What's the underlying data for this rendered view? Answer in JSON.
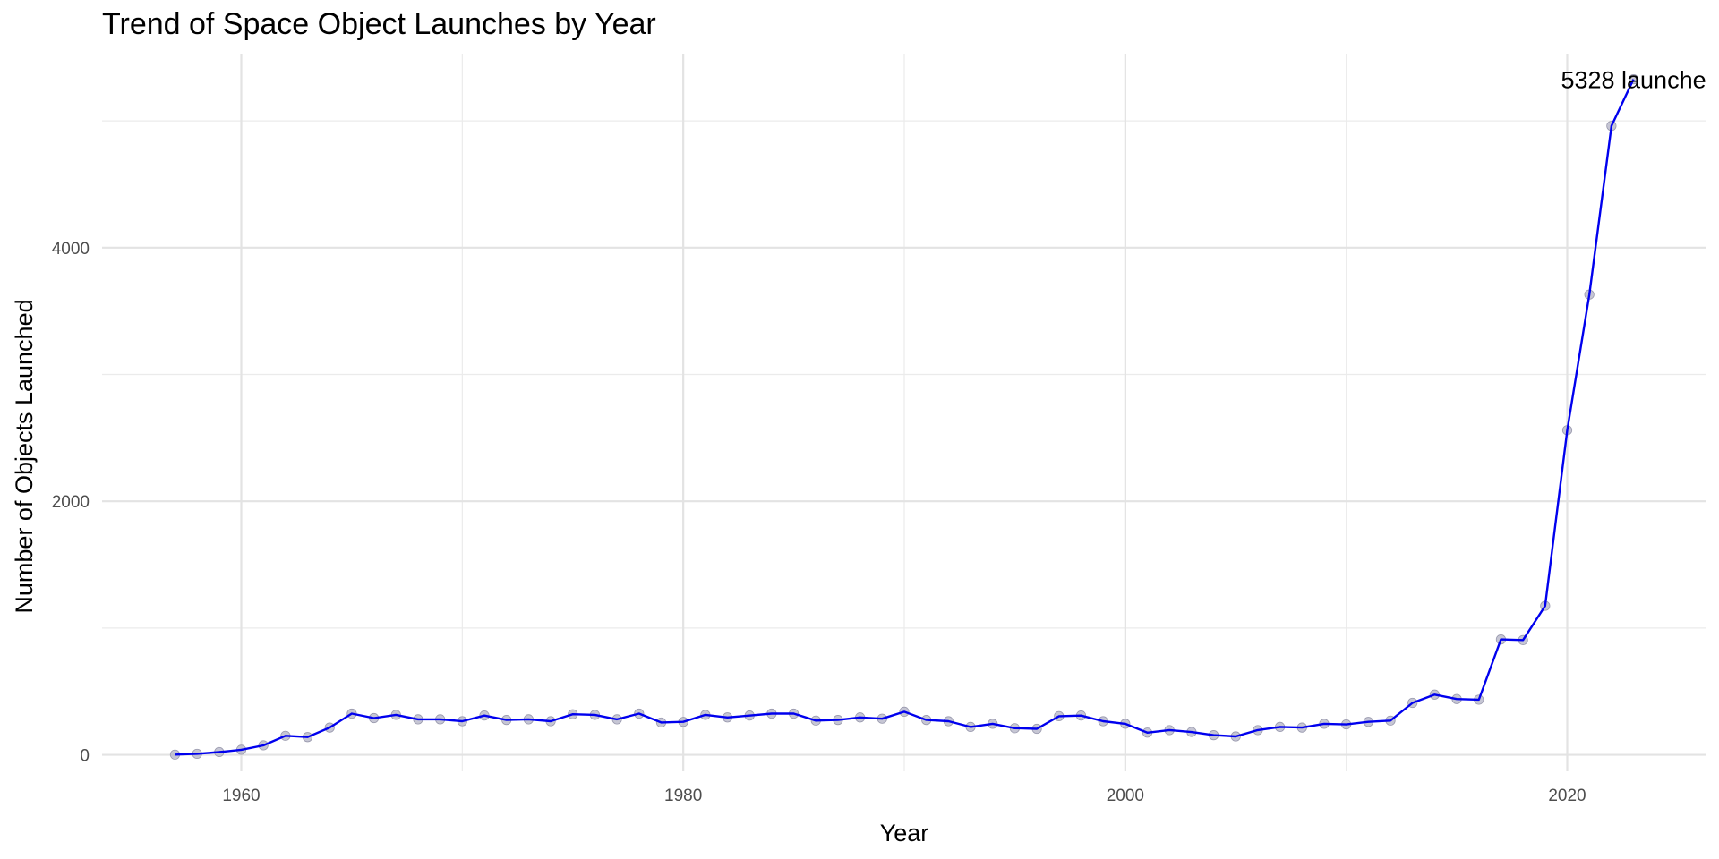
{
  "chart_data": {
    "type": "line",
    "title": "Trend of Space Object Launches by Year",
    "xlabel": "Year",
    "ylabel": "Number of Objects Launched",
    "xlim": [
      1953.7,
      2026.3
    ],
    "ylim": [
      -130,
      5530
    ],
    "x_ticks": [
      1960,
      1980,
      2000,
      2020
    ],
    "y_ticks": [
      0,
      2000,
      4000
    ],
    "grid": true,
    "line_color": "#0000ee",
    "point_color": "#b3b3c6",
    "series": [
      {
        "x": [
          1957,
          1958,
          1959,
          1960,
          1961,
          1962,
          1963,
          1964,
          1965,
          1966,
          1967,
          1968,
          1969,
          1970,
          1971,
          1972,
          1973,
          1974,
          1975,
          1976,
          1977,
          1978,
          1979,
          1980,
          1981,
          1982,
          1983,
          1984,
          1985,
          1986,
          1987,
          1988,
          1989,
          1990,
          1991,
          1992,
          1993,
          1994,
          1995,
          1996,
          1997,
          1998,
          1999,
          2000,
          2001,
          2002,
          2003,
          2004,
          2005,
          2006,
          2007,
          2008,
          2009,
          2010,
          2011,
          2012,
          2013,
          2014,
          2015,
          2016,
          2017,
          2018,
          2019,
          2020,
          2021,
          2022,
          2023
        ],
        "values": [
          2,
          8,
          22,
          40,
          75,
          150,
          140,
          215,
          325,
          290,
          315,
          280,
          280,
          265,
          310,
          275,
          280,
          265,
          320,
          315,
          280,
          325,
          255,
          260,
          315,
          295,
          310,
          325,
          325,
          270,
          275,
          295,
          285,
          340,
          275,
          265,
          220,
          245,
          210,
          205,
          305,
          310,
          265,
          245,
          175,
          195,
          180,
          155,
          145,
          195,
          220,
          215,
          245,
          240,
          260,
          270,
          410,
          475,
          440,
          435,
          910,
          905,
          1175,
          2560,
          3630,
          4960,
          5328
        ]
      }
    ],
    "annotations": [
      {
        "x": 2023,
        "y": 5328,
        "text": "5328 launche"
      }
    ]
  }
}
